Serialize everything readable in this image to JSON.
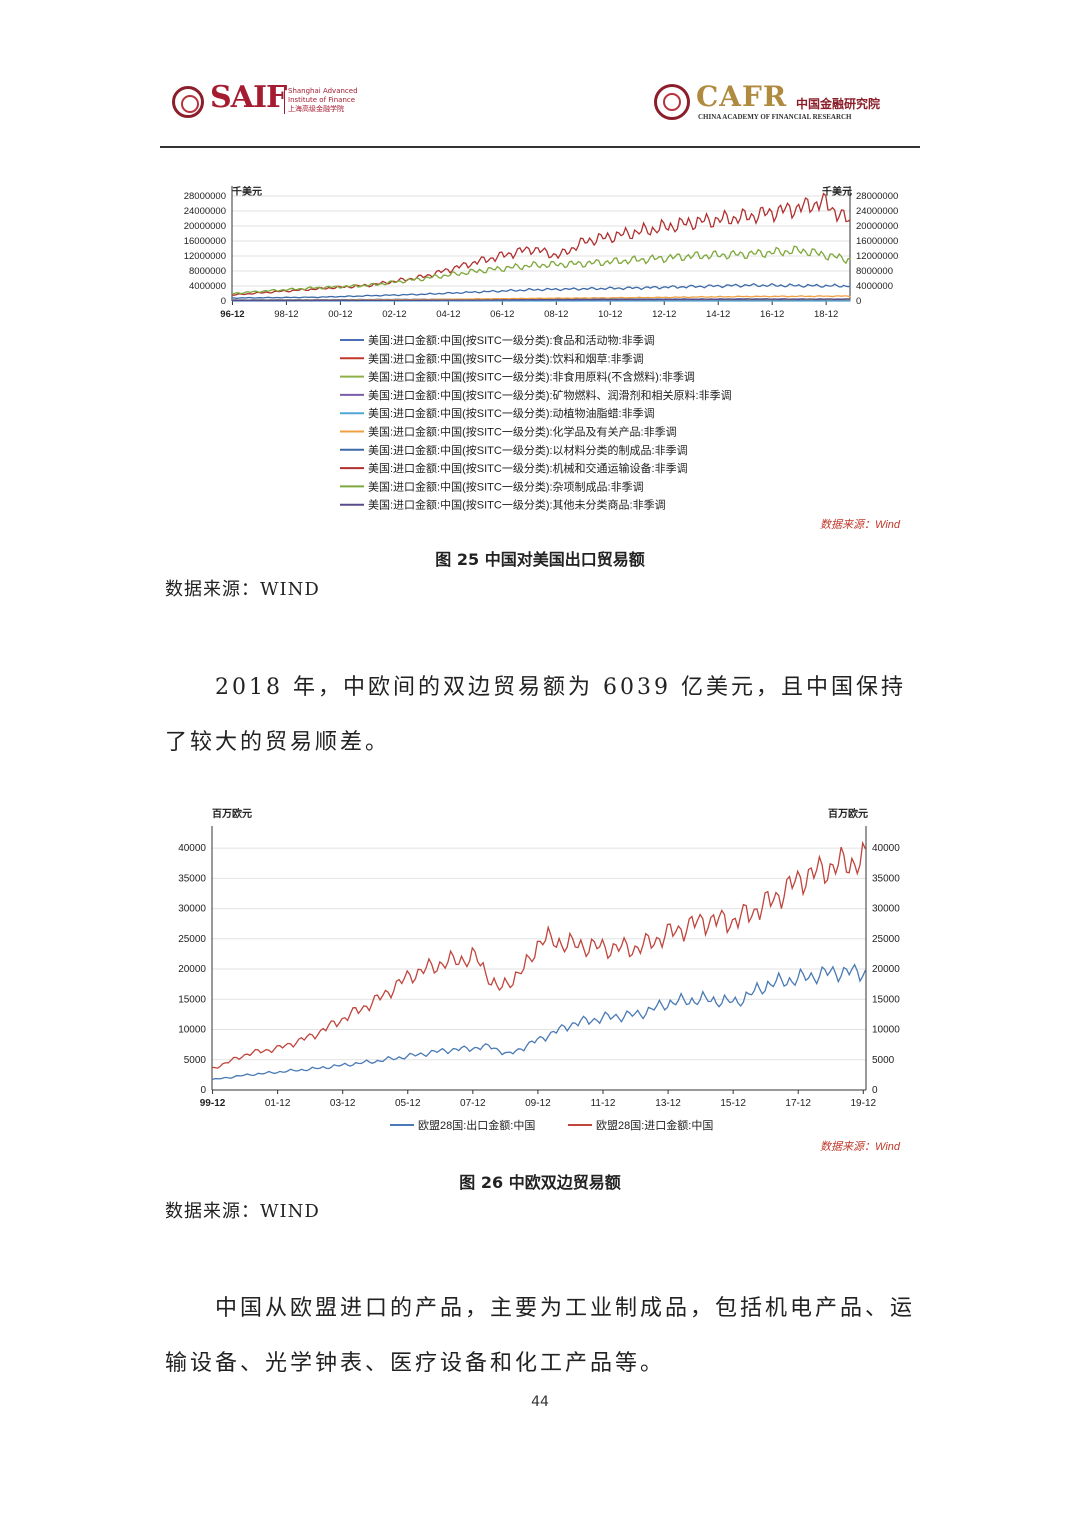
{
  "header": {
    "left_logo": {
      "wordmark": "SAIF",
      "sub_en1": "Shanghai Advanced",
      "sub_en2": "Institute of Finance",
      "sub_cn": "上海高级金融学院"
    },
    "right_logo": {
      "wordmark": "CAFR",
      "cn": "中国金融研究院",
      "en": "CHINA ACADEMY OF FINANCIAL RESEARCH"
    }
  },
  "fig25": {
    "unit_left": "千美元",
    "unit_right": "千美元",
    "source_note": "数据来源：Wind",
    "caption": "图 25 中国对美国出口贸易额",
    "source_line": "数据来源：WIND"
  },
  "para1": "2018 年，中欧间的双边贸易额为 6039 亿美元，且中国保持了较大的贸易顺差。",
  "fig26": {
    "unit_left": "百万欧元",
    "unit_right": "百万欧元",
    "source_note": "数据来源：Wind",
    "caption": "图 26 中欧双边贸易额",
    "source_line": "数据来源：WIND"
  },
  "para2": "中国从欧盟进口的产品，主要为工业制成品，包括机电产品、运输设备、光学钟表、医疗设备和化工产品等。",
  "page_number": "44",
  "chart_data": [
    {
      "type": "line",
      "ylim": [
        0,
        28000000
      ],
      "yticks": [
        0,
        4000000,
        8000000,
        12000000,
        16000000,
        20000000,
        24000000,
        28000000
      ],
      "x_ticklabels": [
        "96-12",
        "98-12",
        "00-12",
        "02-12",
        "04-12",
        "06-12",
        "08-12",
        "10-12",
        "12-12",
        "14-12",
        "16-12",
        "18-12"
      ],
      "x_range": [
        1996.9,
        2019.8
      ],
      "series": [
        {
          "name": "美国:进口金额:中国(按SITC一级分类):食品和活动物:非季调",
          "color": "#4a6fb5",
          "x": [
            1996.9,
            2000,
            2004,
            2008,
            2012,
            2016,
            2019.8
          ],
          "values": [
            300000,
            350000,
            450000,
            500000,
            500000,
            550000,
            500000
          ]
        },
        {
          "name": "美国:进口金额:中国(按SITC一级分类):饮料和烟草:非季调",
          "color": "#c0392b",
          "x": [
            1996.9,
            2000,
            2004,
            2008,
            2012,
            2016,
            2019.8
          ],
          "values": [
            30000,
            30000,
            40000,
            40000,
            40000,
            50000,
            50000
          ]
        },
        {
          "name": "美国:进口金额:中国(按SITC一级分类):非食用原料(不含燃料):非季调",
          "color": "#8db04a",
          "x": [
            1996.9,
            2000,
            2004,
            2008,
            2012,
            2016,
            2019.8
          ],
          "values": [
            100000,
            150000,
            200000,
            250000,
            300000,
            300000,
            280000
          ]
        },
        {
          "name": "美国:进口金额:中国(按SITC一级分类):矿物燃料、润滑剂和相关原料:非季调",
          "color": "#7b5ea7",
          "x": [
            1996.9,
            2000,
            2004,
            2008,
            2012,
            2016,
            2019.8
          ],
          "values": [
            20000,
            30000,
            50000,
            80000,
            60000,
            50000,
            40000
          ]
        },
        {
          "name": "美国:进口金额:中国(按SITC一级分类):动植物油脂蜡:非季调",
          "color": "#4fa8d8",
          "x": [
            1996.9,
            2000,
            2004,
            2008,
            2012,
            2016,
            2019.8
          ],
          "values": [
            5000,
            5000,
            8000,
            10000,
            10000,
            10000,
            10000
          ]
        },
        {
          "name": "美国:进口金额:中国(按SITC一级分类):化学品及有关产品:非季调",
          "color": "#f0a040",
          "x": [
            1996.9,
            2000,
            2004,
            2008,
            2012,
            2016,
            2019.8
          ],
          "values": [
            150000,
            200000,
            400000,
            700000,
            900000,
            1200000,
            1300000
          ]
        },
        {
          "name": "美国:进口金额:中国(按SITC一级分类):以材料分类的制成品:非季调",
          "color": "#3d6aa8",
          "x": [
            1996.9,
            2000,
            2004,
            2008,
            2012,
            2016,
            2019.8
          ],
          "values": [
            800000,
            1000000,
            1800000,
            3000000,
            3500000,
            4200000,
            4000000
          ]
        },
        {
          "name": "美国:进口金额:中国(按SITC一级分类):机械和交通运输设备:非季调",
          "color": "#b03030",
          "x": [
            1996.9,
            1998,
            2000,
            2002,
            2004,
            2006,
            2008,
            2009,
            2010,
            2012,
            2014,
            2016,
            2018,
            2018.8,
            2019.8
          ],
          "values": [
            1600000,
            2200000,
            3200000,
            4200000,
            6500000,
            10500000,
            14000000,
            12000000,
            16000000,
            18500000,
            21000000,
            22500000,
            25000000,
            26500000,
            21000000
          ]
        },
        {
          "name": "美国:进口金额:中国(按SITC一级分类):杂项制成品:非季调",
          "color": "#7ea83a",
          "x": [
            1996.9,
            1998,
            2000,
            2002,
            2004,
            2006,
            2008,
            2010,
            2012,
            2014,
            2016,
            2018,
            2019.8
          ],
          "values": [
            2000000,
            2600000,
            3500000,
            4200000,
            6000000,
            8000000,
            9500000,
            10000000,
            11000000,
            12000000,
            12500000,
            13500000,
            11000000
          ]
        },
        {
          "name": "美国:进口金额:中国(按SITC一级分类):其他未分类商品:非季调",
          "color": "#5a4b8a",
          "x": [
            1996.9,
            2000,
            2004,
            2008,
            2012,
            2016,
            2019.8
          ],
          "values": [
            100000,
            120000,
            200000,
            300000,
            400000,
            500000,
            500000
          ]
        }
      ]
    },
    {
      "type": "line",
      "ylim": [
        0,
        42000
      ],
      "yticks": [
        0,
        5000,
        10000,
        15000,
        20000,
        25000,
        30000,
        35000,
        40000
      ],
      "x_ticklabels": [
        "99-12",
        "01-12",
        "03-12",
        "05-12",
        "07-12",
        "09-12",
        "11-12",
        "13-12",
        "15-12",
        "17-12",
        "19-12"
      ],
      "x_range": [
        1999.9,
        2020.0
      ],
      "series": [
        {
          "name": "欧盟28国:出口金额:中国",
          "color": "#4a7ab5",
          "x": [
            1999.9,
            2001,
            2003,
            2005,
            2007,
            2008.5,
            2009,
            2010,
            2011,
            2012,
            2013,
            2014,
            2015,
            2016,
            2017,
            2018,
            2019,
            2019.9
          ],
          "values": [
            1700,
            2500,
            3500,
            4800,
            6500,
            7200,
            5800,
            8500,
            11000,
            12000,
            12500,
            14500,
            15000,
            14500,
            17500,
            18500,
            19500,
            19500
          ]
        },
        {
          "name": "欧盟28国:进口金额:中国",
          "color": "#c0453d",
          "x": [
            1999.9,
            2001,
            2002,
            2003,
            2004,
            2005,
            2006,
            2007,
            2008,
            2008.7,
            2009.5,
            2010,
            2011,
            2012,
            2013,
            2014,
            2015,
            2016,
            2017,
            2018,
            2019,
            2019.9
          ],
          "values": [
            3500,
            6000,
            7000,
            9000,
            12000,
            15000,
            19000,
            21000,
            22000,
            16500,
            20000,
            25000,
            24000,
            23500,
            23500,
            26000,
            28000,
            28000,
            31000,
            35000,
            37000,
            38000
          ]
        }
      ]
    }
  ]
}
